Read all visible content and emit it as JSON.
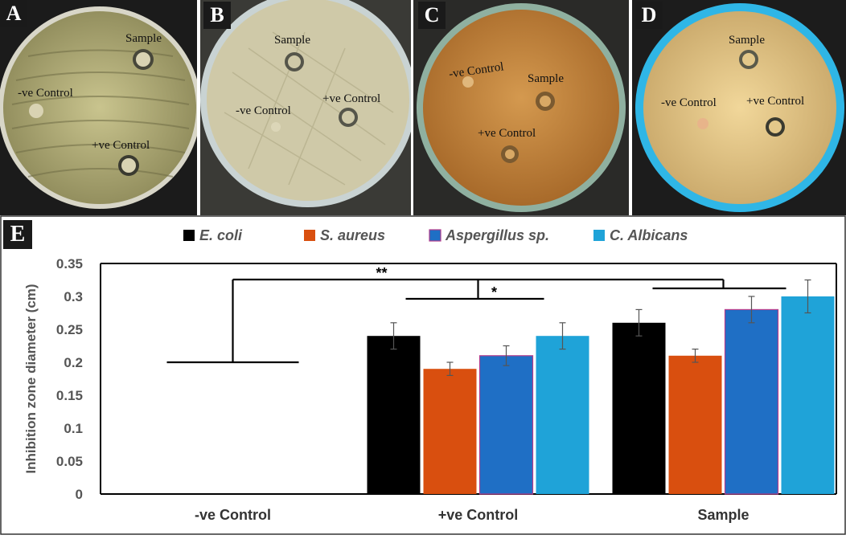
{
  "panels": [
    {
      "letter": "A",
      "sample": "Sample",
      "neg": "-ve Control",
      "pos": "+ve Control"
    },
    {
      "letter": "B",
      "sample": "Sample",
      "neg": "-ve Control",
      "pos": "+ve Control"
    },
    {
      "letter": "C",
      "sample": "Sample",
      "neg": "-ve Control",
      "pos": "+ve Control"
    },
    {
      "letter": "D",
      "sample": "Sample",
      "neg": "-ve Control",
      "pos": "+ve Control"
    }
  ],
  "colors": {
    "E. coli": "#000000",
    "S. aureus": "#d94f0f",
    "Aspergillus sp.": "#1f6fc5",
    "C. Albicans": "#1fa3d8"
  },
  "chart_data": {
    "type": "bar",
    "panel_letter": "E",
    "categories": [
      "-ve Control",
      "+ve Control",
      "Sample"
    ],
    "series": [
      {
        "name": "E. coli",
        "values": [
          0,
          0.24,
          0.26
        ],
        "errors": [
          0,
          0.02,
          0.02
        ]
      },
      {
        "name": "S. aureus",
        "values": [
          0,
          0.19,
          0.21
        ],
        "errors": [
          0,
          0.01,
          0.01
        ]
      },
      {
        "name": "Aspergillus sp.",
        "values": [
          0,
          0.21,
          0.28
        ],
        "errors": [
          0,
          0.015,
          0.02
        ]
      },
      {
        "name": "C. Albicans",
        "values": [
          0,
          0.24,
          0.3
        ],
        "errors": [
          0,
          0.02,
          0.025
        ]
      }
    ],
    "ylabel": "Inhibition zone diameter (cm)",
    "xlabel": "",
    "ylim": [
      0,
      0.35
    ],
    "yticks": [
      "0",
      "0.05",
      "0.1",
      "0.15",
      "0.2",
      "0.25",
      "0.3",
      "0.35"
    ],
    "legend_position": "top",
    "grid": false,
    "significance": [
      {
        "label": "**",
        "between": [
          "-ve Control",
          "Sample"
        ]
      },
      {
        "label": "*",
        "between": [
          "+ve Control",
          "Sample"
        ]
      }
    ],
    "negative_control_line_value": 0.2
  }
}
